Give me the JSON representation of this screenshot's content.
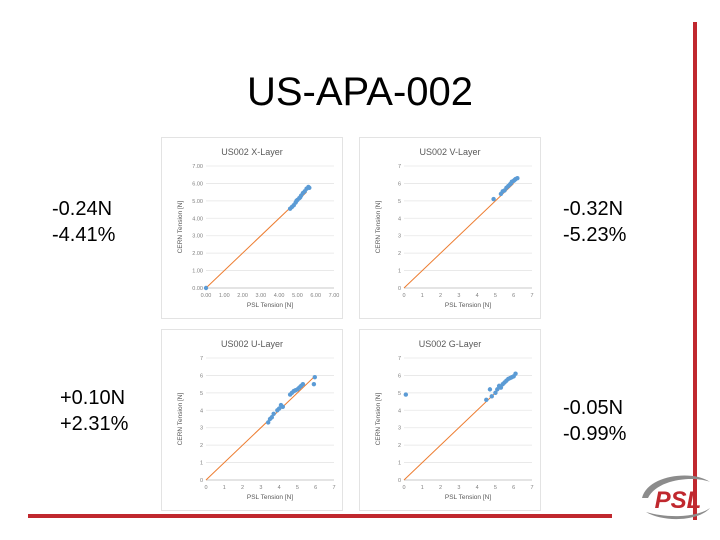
{
  "slide": {
    "title": "US-APA-002"
  },
  "stats": {
    "x": {
      "delta_n": "-0.24N",
      "delta_pct": "-4.41%"
    },
    "v": {
      "delta_n": "-0.32N",
      "delta_pct": "-5.23%"
    },
    "u": {
      "delta_n": "+0.10N",
      "delta_pct": "+2.31%"
    },
    "g": {
      "delta_n": "-0.05N",
      "delta_pct": "-0.99%"
    }
  },
  "logo": {
    "text": "PSL"
  },
  "colors": {
    "accent": "#c0282e",
    "points": "#5b9bd5",
    "fit_line": "#ed7d31",
    "logo_gray": "#8c8c8c"
  },
  "chart_data": [
    {
      "type": "scatter",
      "title": "US002 X-Layer",
      "xlabel": "PSL Tension [N]",
      "ylabel": "CERN Tension [N]",
      "xlim": [
        0,
        7
      ],
      "ylim": [
        0,
        7
      ],
      "xticks": [
        "0.00",
        "1.00",
        "2.00",
        "3.00",
        "4.00",
        "5.00",
        "6.00",
        "7.00"
      ],
      "yticks": [
        "0.00",
        "1.00",
        "2.00",
        "3.00",
        "4.00",
        "5.00",
        "6.00",
        "7.00"
      ],
      "grid": true,
      "fit_line": [
        [
          0,
          0
        ],
        [
          5.5,
          5.5
        ]
      ],
      "points": [
        [
          0.0,
          0.0
        ],
        [
          4.6,
          4.55
        ],
        [
          4.7,
          4.65
        ],
        [
          4.8,
          4.75
        ],
        [
          4.9,
          4.9
        ],
        [
          4.95,
          5.0
        ],
        [
          5.0,
          5.05
        ],
        [
          5.1,
          5.15
        ],
        [
          5.15,
          5.2
        ],
        [
          5.2,
          5.3
        ],
        [
          5.3,
          5.45
        ],
        [
          5.4,
          5.55
        ],
        [
          5.5,
          5.7
        ],
        [
          5.6,
          5.8
        ],
        [
          5.65,
          5.75
        ]
      ]
    },
    {
      "type": "scatter",
      "title": "US002 V-Layer",
      "xlabel": "PSL Tension [N]",
      "ylabel": "CERN Tension [N]",
      "xlim": [
        0,
        7
      ],
      "ylim": [
        0,
        7
      ],
      "xticks": [
        "0",
        "1",
        "2",
        "3",
        "4",
        "5",
        "6",
        "7"
      ],
      "yticks": [
        "0",
        "1",
        "2",
        "3",
        "4",
        "5",
        "6",
        "7"
      ],
      "grid": true,
      "fit_line": [
        [
          0,
          0
        ],
        [
          6.0,
          6.0
        ]
      ],
      "points": [
        [
          4.9,
          5.1
        ],
        [
          5.3,
          5.4
        ],
        [
          5.4,
          5.55
        ],
        [
          5.5,
          5.6
        ],
        [
          5.6,
          5.75
        ],
        [
          5.7,
          5.85
        ],
        [
          5.8,
          5.95
        ],
        [
          5.85,
          6.0
        ],
        [
          5.9,
          6.1
        ],
        [
          6.0,
          6.15
        ],
        [
          6.05,
          6.2
        ],
        [
          6.1,
          6.25
        ],
        [
          6.2,
          6.3
        ]
      ]
    },
    {
      "type": "scatter",
      "title": "US002 U-Layer",
      "xlabel": "PSL Tension [N]",
      "ylabel": "CERN Tension [N]",
      "xlim": [
        0,
        7
      ],
      "ylim": [
        0,
        7
      ],
      "xticks": [
        "0",
        "1",
        "2",
        "3",
        "4",
        "5",
        "6",
        "7"
      ],
      "yticks": [
        "0",
        "1",
        "2",
        "3",
        "4",
        "5",
        "6",
        "7"
      ],
      "grid": true,
      "fit_line": [
        [
          0,
          0
        ],
        [
          5.9,
          5.9
        ]
      ],
      "points": [
        [
          3.4,
          3.3
        ],
        [
          3.5,
          3.5
        ],
        [
          3.6,
          3.6
        ],
        [
          3.7,
          3.8
        ],
        [
          3.9,
          4.0
        ],
        [
          4.0,
          4.1
        ],
        [
          4.1,
          4.3
        ],
        [
          4.2,
          4.2
        ],
        [
          4.6,
          4.9
        ],
        [
          4.7,
          5.0
        ],
        [
          4.8,
          5.1
        ],
        [
          4.9,
          5.15
        ],
        [
          5.0,
          5.2
        ],
        [
          5.1,
          5.3
        ],
        [
          5.2,
          5.4
        ],
        [
          5.3,
          5.5
        ],
        [
          5.9,
          5.5
        ],
        [
          5.95,
          5.9
        ]
      ]
    },
    {
      "type": "scatter",
      "title": "US002 G-Layer",
      "xlabel": "PSL Tension [N]",
      "ylabel": "CERN Tension [N]",
      "xlim": [
        0,
        7
      ],
      "ylim": [
        0,
        7
      ],
      "xticks": [
        "0",
        "1",
        "2",
        "3",
        "4",
        "5",
        "6",
        "7"
      ],
      "yticks": [
        "0",
        "1",
        "2",
        "3",
        "4",
        "5",
        "6",
        "7"
      ],
      "grid": true,
      "fit_line": [
        [
          0,
          0
        ],
        [
          6.0,
          6.0
        ]
      ],
      "points": [
        [
          0.1,
          4.9
        ],
        [
          4.5,
          4.6
        ],
        [
          4.7,
          5.2
        ],
        [
          4.8,
          4.8
        ],
        [
          5.0,
          5.0
        ],
        [
          5.1,
          5.2
        ],
        [
          5.2,
          5.4
        ],
        [
          5.3,
          5.3
        ],
        [
          5.4,
          5.5
        ],
        [
          5.5,
          5.6
        ],
        [
          5.6,
          5.7
        ],
        [
          5.7,
          5.8
        ],
        [
          5.8,
          5.85
        ],
        [
          5.9,
          5.9
        ],
        [
          6.0,
          5.95
        ],
        [
          6.1,
          6.1
        ]
      ]
    }
  ]
}
